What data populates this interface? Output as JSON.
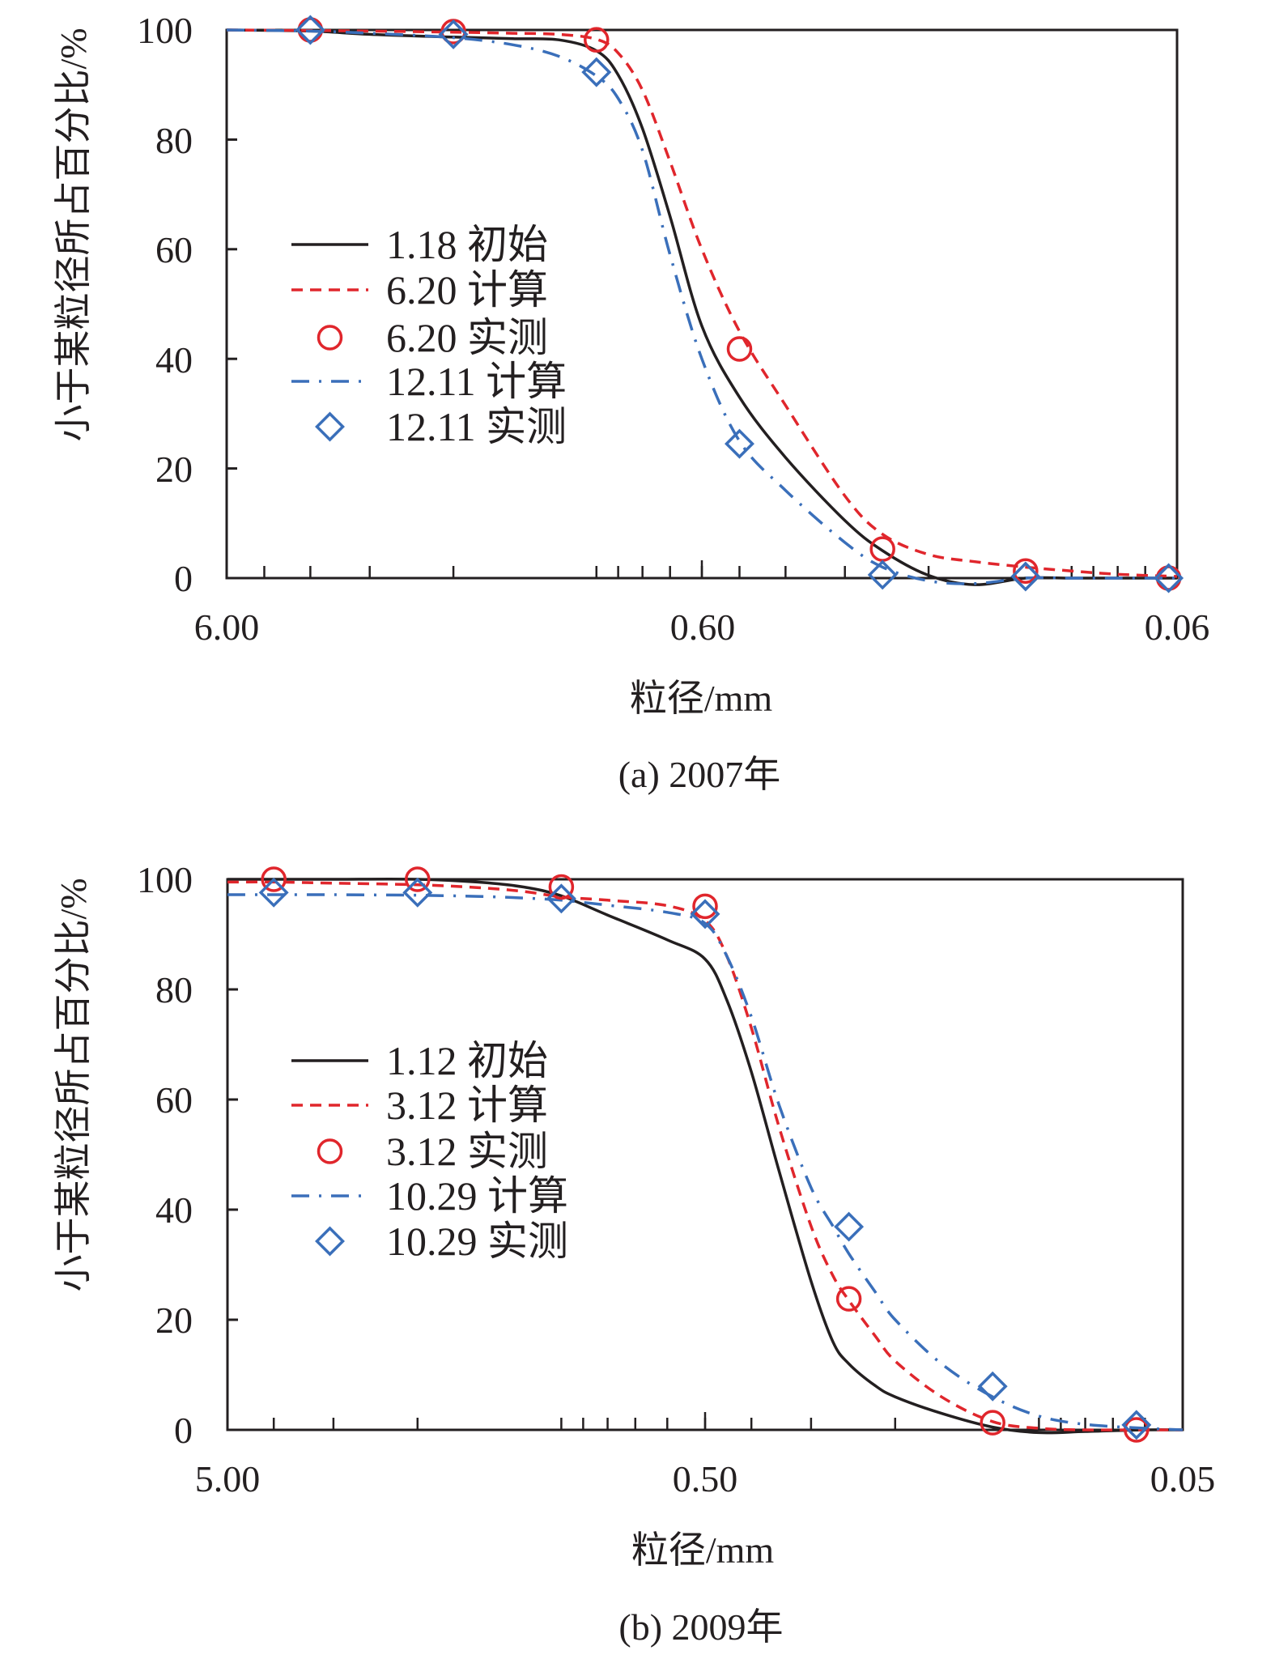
{
  "figure": {
    "colors": {
      "axis": "#231f20",
      "initial": "#231f20",
      "red": "#e0262c",
      "blue": "#3a6fba"
    }
  },
  "chart_data": [
    {
      "type": "line",
      "caption": "(a) 2007年",
      "xlabel": "粒径/mm",
      "ylabel": "小于某粒径所占百分比/%",
      "xscale": "log",
      "x_reversed": true,
      "xlim": [
        6.0,
        0.06
      ],
      "ylim": [
        0,
        100
      ],
      "xticks": [
        6.0,
        0.6,
        0.06
      ],
      "xtick_labels": [
        "6.00",
        "0.60",
        "0.06"
      ],
      "yticks": [
        0,
        20,
        40,
        60,
        80,
        100
      ],
      "ytick_labels": [
        "0",
        "20",
        "40",
        "60",
        "80",
        "100"
      ],
      "grid": false,
      "legend_position": "center-left",
      "series": [
        {
          "name": "1.18 初始",
          "kind": "line",
          "style": "solid",
          "color": "#231f20",
          "x": [
            6.0,
            4.0,
            3.0,
            2.0,
            1.5,
            1.2,
            1.0,
            0.9,
            0.8,
            0.7,
            0.6,
            0.5,
            0.4,
            0.3,
            0.25,
            0.2,
            0.16,
            0.125,
            0.1,
            0.08,
            0.06
          ],
          "y": [
            100,
            99.8,
            99.2,
            98.7,
            98.4,
            98.2,
            96.2,
            91.8,
            82,
            66,
            46,
            33,
            22,
            10.5,
            5,
            0.5,
            -1.2,
            0,
            0,
            0,
            0
          ]
        },
        {
          "name": "6.20 计算",
          "kind": "line",
          "style": "dashed",
          "color": "#e0262c",
          "x": [
            6.0,
            4.0,
            3.0,
            2.0,
            1.5,
            1.2,
            1.0,
            0.9,
            0.8,
            0.7,
            0.6,
            0.5,
            0.4,
            0.3,
            0.25,
            0.2,
            0.16,
            0.125,
            0.1,
            0.08,
            0.06
          ],
          "y": [
            100,
            99.9,
            99.8,
            99.6,
            99.4,
            99.2,
            98.3,
            95.8,
            89,
            76,
            60,
            45,
            31.5,
            15,
            8,
            4.3,
            3.0,
            2.0,
            1.3,
            0.7,
            0.3
          ]
        },
        {
          "name": "6.20 实测",
          "kind": "scatter",
          "marker": "circle",
          "color": "#e0262c",
          "x": [
            4.0,
            2.0,
            1.0,
            0.5,
            0.25,
            0.125,
            0.0625
          ],
          "y": [
            100,
            99.7,
            98.2,
            41.8,
            5.3,
            1.3,
            0
          ]
        },
        {
          "name": "12.11 计算",
          "kind": "line",
          "style": "dashdot",
          "color": "#3a6fba",
          "x": [
            6.0,
            4.0,
            3.0,
            2.0,
            1.5,
            1.2,
            1.0,
            0.9,
            0.8,
            0.7,
            0.6,
            0.5,
            0.4,
            0.3,
            0.25,
            0.2,
            0.16,
            0.125,
            0.1,
            0.08,
            0.06
          ],
          "y": [
            100,
            99.8,
            99.4,
            98.6,
            97.3,
            95.2,
            91.6,
            87.5,
            78,
            59,
            40,
            25,
            16,
            6.5,
            2,
            -0.5,
            -1.0,
            0,
            0,
            0,
            0
          ]
        },
        {
          "name": "12.11 实测",
          "kind": "scatter",
          "marker": "diamond",
          "color": "#3a6fba",
          "x": [
            4.0,
            2.0,
            1.0,
            0.5,
            0.25,
            0.125,
            0.0625
          ],
          "y": [
            100,
            99.2,
            92.3,
            24.5,
            0.6,
            0.3,
            0
          ]
        }
      ]
    },
    {
      "type": "line",
      "caption": "(b) 2009年",
      "xlabel": "粒径/mm",
      "ylabel": "小于某粒径所占百分比/%",
      "xscale": "log",
      "x_reversed": true,
      "xlim": [
        5.0,
        0.05
      ],
      "ylim": [
        0,
        100
      ],
      "xticks": [
        5.0,
        0.5,
        0.05
      ],
      "xtick_labels": [
        "5.00",
        "0.50",
        "0.05"
      ],
      "yticks": [
        0,
        20,
        40,
        60,
        80,
        100
      ],
      "ytick_labels": [
        "0",
        "20",
        "40",
        "60",
        "80",
        "100"
      ],
      "grid": false,
      "legend_position": "center-left",
      "series": [
        {
          "name": "1.12 初始",
          "kind": "line",
          "style": "solid",
          "color": "#231f20",
          "x": [
            5.0,
            4.0,
            3.0,
            2.0,
            1.5,
            1.2,
            1.0,
            0.8,
            0.6,
            0.5,
            0.45,
            0.4,
            0.35,
            0.3,
            0.27,
            0.25,
            0.22,
            0.2,
            0.16,
            0.125,
            0.1,
            0.08,
            0.06,
            0.05
          ],
          "y": [
            100,
            100,
            100,
            100,
            99.5,
            98.6,
            97,
            93.5,
            89,
            85.5,
            78,
            65,
            47,
            27,
            16,
            12,
            8,
            6,
            3,
            0.5,
            -0.5,
            -0.3,
            0,
            0
          ]
        },
        {
          "name": "3.12 计算",
          "kind": "line",
          "style": "dashed",
          "color": "#e0262c",
          "x": [
            5.0,
            4.0,
            3.0,
            2.0,
            1.5,
            1.2,
            1.0,
            0.8,
            0.6,
            0.5,
            0.45,
            0.4,
            0.35,
            0.3,
            0.27,
            0.25,
            0.22,
            0.2,
            0.16,
            0.125,
            0.1,
            0.08,
            0.06,
            0.05
          ],
          "y": [
            99.5,
            99.5,
            99.3,
            99,
            98.5,
            97.8,
            96.8,
            96.2,
            95.2,
            92.5,
            86,
            73,
            55,
            37,
            28,
            23.5,
            17,
            12.5,
            6,
            1.5,
            0.3,
            0,
            0,
            0
          ]
        },
        {
          "name": "3.12 实测",
          "kind": "scatter",
          "marker": "circle",
          "color": "#e0262c",
          "x": [
            4.0,
            2.0,
            1.0,
            0.5,
            0.25,
            0.125,
            0.0625
          ],
          "y": [
            100,
            100,
            98.6,
            95.1,
            23.8,
            1.3,
            0
          ]
        },
        {
          "name": "10.29 计算",
          "kind": "line",
          "style": "dashdot",
          "color": "#3a6fba",
          "x": [
            5.0,
            4.0,
            3.0,
            2.0,
            1.5,
            1.2,
            1.0,
            0.8,
            0.6,
            0.5,
            0.45,
            0.4,
            0.35,
            0.3,
            0.27,
            0.25,
            0.22,
            0.2,
            0.16,
            0.125,
            0.1,
            0.08,
            0.06,
            0.05
          ],
          "y": [
            97.2,
            97.2,
            97.2,
            97.1,
            96.9,
            96.6,
            96.2,
            95.3,
            94,
            92,
            86,
            75,
            59,
            44,
            37,
            32,
            25,
            20,
            12,
            6,
            2.5,
            1.0,
            0.3,
            0
          ]
        },
        {
          "name": "10.29 实测",
          "kind": "scatter",
          "marker": "diamond",
          "color": "#3a6fba",
          "x": [
            4.0,
            2.0,
            1.0,
            0.5,
            0.25,
            0.125,
            0.0625
          ],
          "y": [
            97.6,
            97.6,
            96.5,
            93.7,
            36.9,
            7.9,
            0.9
          ]
        }
      ]
    }
  ]
}
